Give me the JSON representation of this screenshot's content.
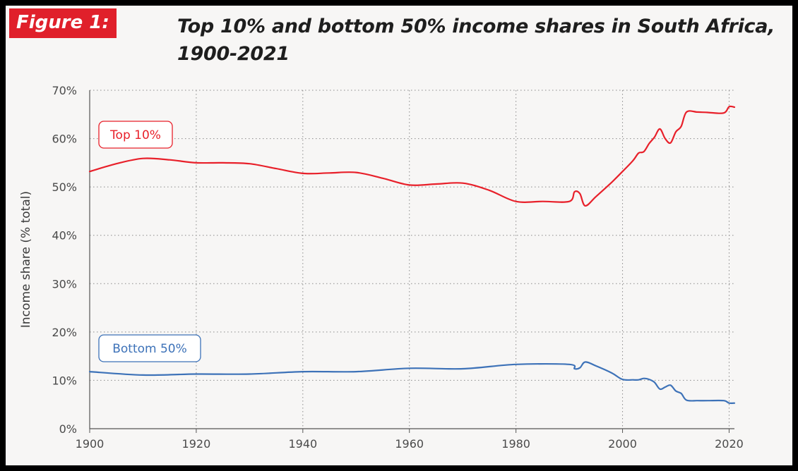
{
  "figure_label": "Figure 1:",
  "chart_data": {
    "type": "line",
    "title": "Top 10% and bottom 50% income shares in South Africa, 1900-2021",
    "title_lines": [
      "Top 10% and bottom 50% income shares in South Africa,",
      "1900-2021"
    ],
    "xlabel": "",
    "ylabel": "Income share (% total)",
    "xlim": [
      1900,
      2021
    ],
    "ylim": [
      0,
      70
    ],
    "x_ticks": [
      1900,
      1920,
      1940,
      1960,
      1980,
      2000,
      2020
    ],
    "y_ticks": [
      0,
      10,
      20,
      30,
      40,
      50,
      60,
      70
    ],
    "y_tick_labels": [
      "0%",
      "10%",
      "20%",
      "30%",
      "40%",
      "50%",
      "60%",
      "70%"
    ],
    "grid": true,
    "colors": {
      "top10": "#e8202a",
      "bottom50": "#3d72b8",
      "grid": "#8a8a8a",
      "axis": "#555555"
    },
    "series": [
      {
        "name": "Top 10%",
        "color": "#e8202a",
        "points": [
          [
            1900,
            53.2
          ],
          [
            1905,
            54.8
          ],
          [
            1910,
            55.9
          ],
          [
            1915,
            55.6
          ],
          [
            1920,
            55.0
          ],
          [
            1925,
            55.0
          ],
          [
            1930,
            54.8
          ],
          [
            1935,
            53.8
          ],
          [
            1940,
            52.8
          ],
          [
            1945,
            52.9
          ],
          [
            1950,
            53.0
          ],
          [
            1955,
            51.8
          ],
          [
            1960,
            50.4
          ],
          [
            1965,
            50.6
          ],
          [
            1970,
            50.8
          ],
          [
            1975,
            49.3
          ],
          [
            1980,
            47.0
          ],
          [
            1985,
            47.0
          ],
          [
            1990,
            47.0
          ],
          [
            1991,
            49.0
          ],
          [
            1992,
            48.6
          ],
          [
            1993,
            46.1
          ],
          [
            1995,
            48.0
          ],
          [
            1998,
            51.0
          ],
          [
            2000,
            53.2
          ],
          [
            2002,
            55.5
          ],
          [
            2003,
            57.0
          ],
          [
            2004,
            57.3
          ],
          [
            2005,
            59.0
          ],
          [
            2006,
            60.3
          ],
          [
            2007,
            62.0
          ],
          [
            2008,
            60.0
          ],
          [
            2009,
            59.1
          ],
          [
            2010,
            61.4
          ],
          [
            2011,
            62.5
          ],
          [
            2012,
            65.5
          ],
          [
            2014,
            65.5
          ],
          [
            2016,
            65.4
          ],
          [
            2019,
            65.3
          ],
          [
            2020,
            66.6
          ],
          [
            2021,
            66.5
          ]
        ]
      },
      {
        "name": "Bottom 50%",
        "color": "#3d72b8",
        "points": [
          [
            1900,
            11.8
          ],
          [
            1910,
            11.1
          ],
          [
            1920,
            11.3
          ],
          [
            1930,
            11.3
          ],
          [
            1940,
            11.8
          ],
          [
            1950,
            11.8
          ],
          [
            1960,
            12.5
          ],
          [
            1970,
            12.4
          ],
          [
            1980,
            13.3
          ],
          [
            1990,
            13.3
          ],
          [
            1991,
            12.4
          ],
          [
            1992,
            12.6
          ],
          [
            1993,
            13.8
          ],
          [
            1995,
            13.0
          ],
          [
            1998,
            11.5
          ],
          [
            2000,
            10.2
          ],
          [
            2002,
            10.1
          ],
          [
            2003,
            10.1
          ],
          [
            2004,
            10.4
          ],
          [
            2005,
            10.2
          ],
          [
            2006,
            9.6
          ],
          [
            2007,
            8.2
          ],
          [
            2008,
            8.6
          ],
          [
            2009,
            9.0
          ],
          [
            2010,
            7.8
          ],
          [
            2011,
            7.3
          ],
          [
            2012,
            5.9
          ],
          [
            2014,
            5.8
          ],
          [
            2016,
            5.8
          ],
          [
            2019,
            5.8
          ],
          [
            2020,
            5.3
          ],
          [
            2021,
            5.3
          ]
        ]
      }
    ],
    "annotations": [
      {
        "text": "Top 10%",
        "series": "Top 10%"
      },
      {
        "text": "Bottom 50%",
        "series": "Bottom 50%"
      }
    ]
  }
}
